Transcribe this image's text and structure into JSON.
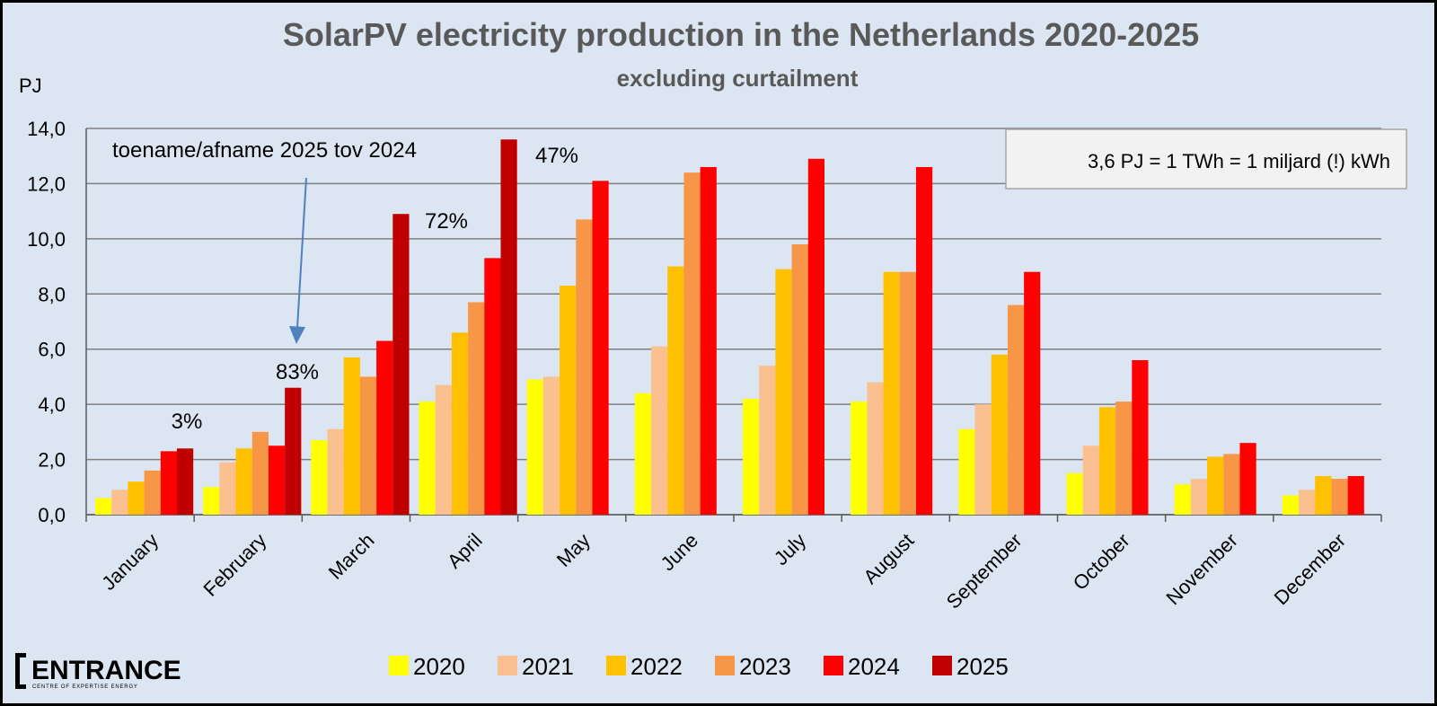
{
  "chart_data": {
    "type": "bar",
    "title": "SolarPV electricity production in the Netherlands 2020-2025",
    "subtitle": "excluding curtailment",
    "ylabel": "PJ",
    "ylim": [
      0,
      14
    ],
    "yticks": [
      "0,0",
      "2,0",
      "4,0",
      "6,0",
      "8,0",
      "10,0",
      "12,0",
      "14,0"
    ],
    "grid": true,
    "legend_position": "bottom",
    "categories": [
      "January",
      "February",
      "March",
      "April",
      "May",
      "June",
      "July",
      "August",
      "September",
      "October",
      "November",
      "December"
    ],
    "series": [
      {
        "name": "2020",
        "color": "#ffff00",
        "values": [
          0.6,
          1.0,
          2.7,
          4.1,
          4.9,
          4.4,
          4.2,
          4.1,
          3.1,
          1.5,
          1.1,
          0.7
        ]
      },
      {
        "name": "2021",
        "color": "#fac090",
        "values": [
          0.9,
          1.9,
          3.1,
          4.7,
          5.0,
          6.1,
          5.4,
          4.8,
          4.0,
          2.5,
          1.3,
          0.9
        ]
      },
      {
        "name": "2022",
        "color": "#ffc000",
        "values": [
          1.2,
          2.4,
          5.7,
          6.6,
          8.3,
          9.0,
          8.9,
          8.8,
          5.8,
          3.9,
          2.1,
          1.4
        ]
      },
      {
        "name": "2023",
        "color": "#f79646",
        "values": [
          1.6,
          3.0,
          5.0,
          7.7,
          10.7,
          12.4,
          9.8,
          8.8,
          7.6,
          4.1,
          2.2,
          1.3
        ]
      },
      {
        "name": "2024",
        "color": "#ff0000",
        "values": [
          2.3,
          2.5,
          6.3,
          9.3,
          12.1,
          12.6,
          12.9,
          12.6,
          8.8,
          5.6,
          2.6,
          1.4
        ]
      },
      {
        "name": "2025",
        "color": "#c00000",
        "values": [
          2.4,
          4.6,
          10.9,
          13.6,
          null,
          null,
          null,
          null,
          null,
          null,
          null,
          null
        ]
      }
    ],
    "annotations": {
      "arrow_label": "toename/afname 2025 tov 2024",
      "percent_labels": [
        "3%",
        "83%",
        "72%",
        "47%"
      ],
      "conversion_note": "3,6 PJ = 1 TWh = 1 miljard (!) kWh"
    }
  },
  "branding": {
    "logo_text": "ENTRANCE",
    "logo_subtext": "CENTRE OF EXPERTISE ENERGY"
  }
}
